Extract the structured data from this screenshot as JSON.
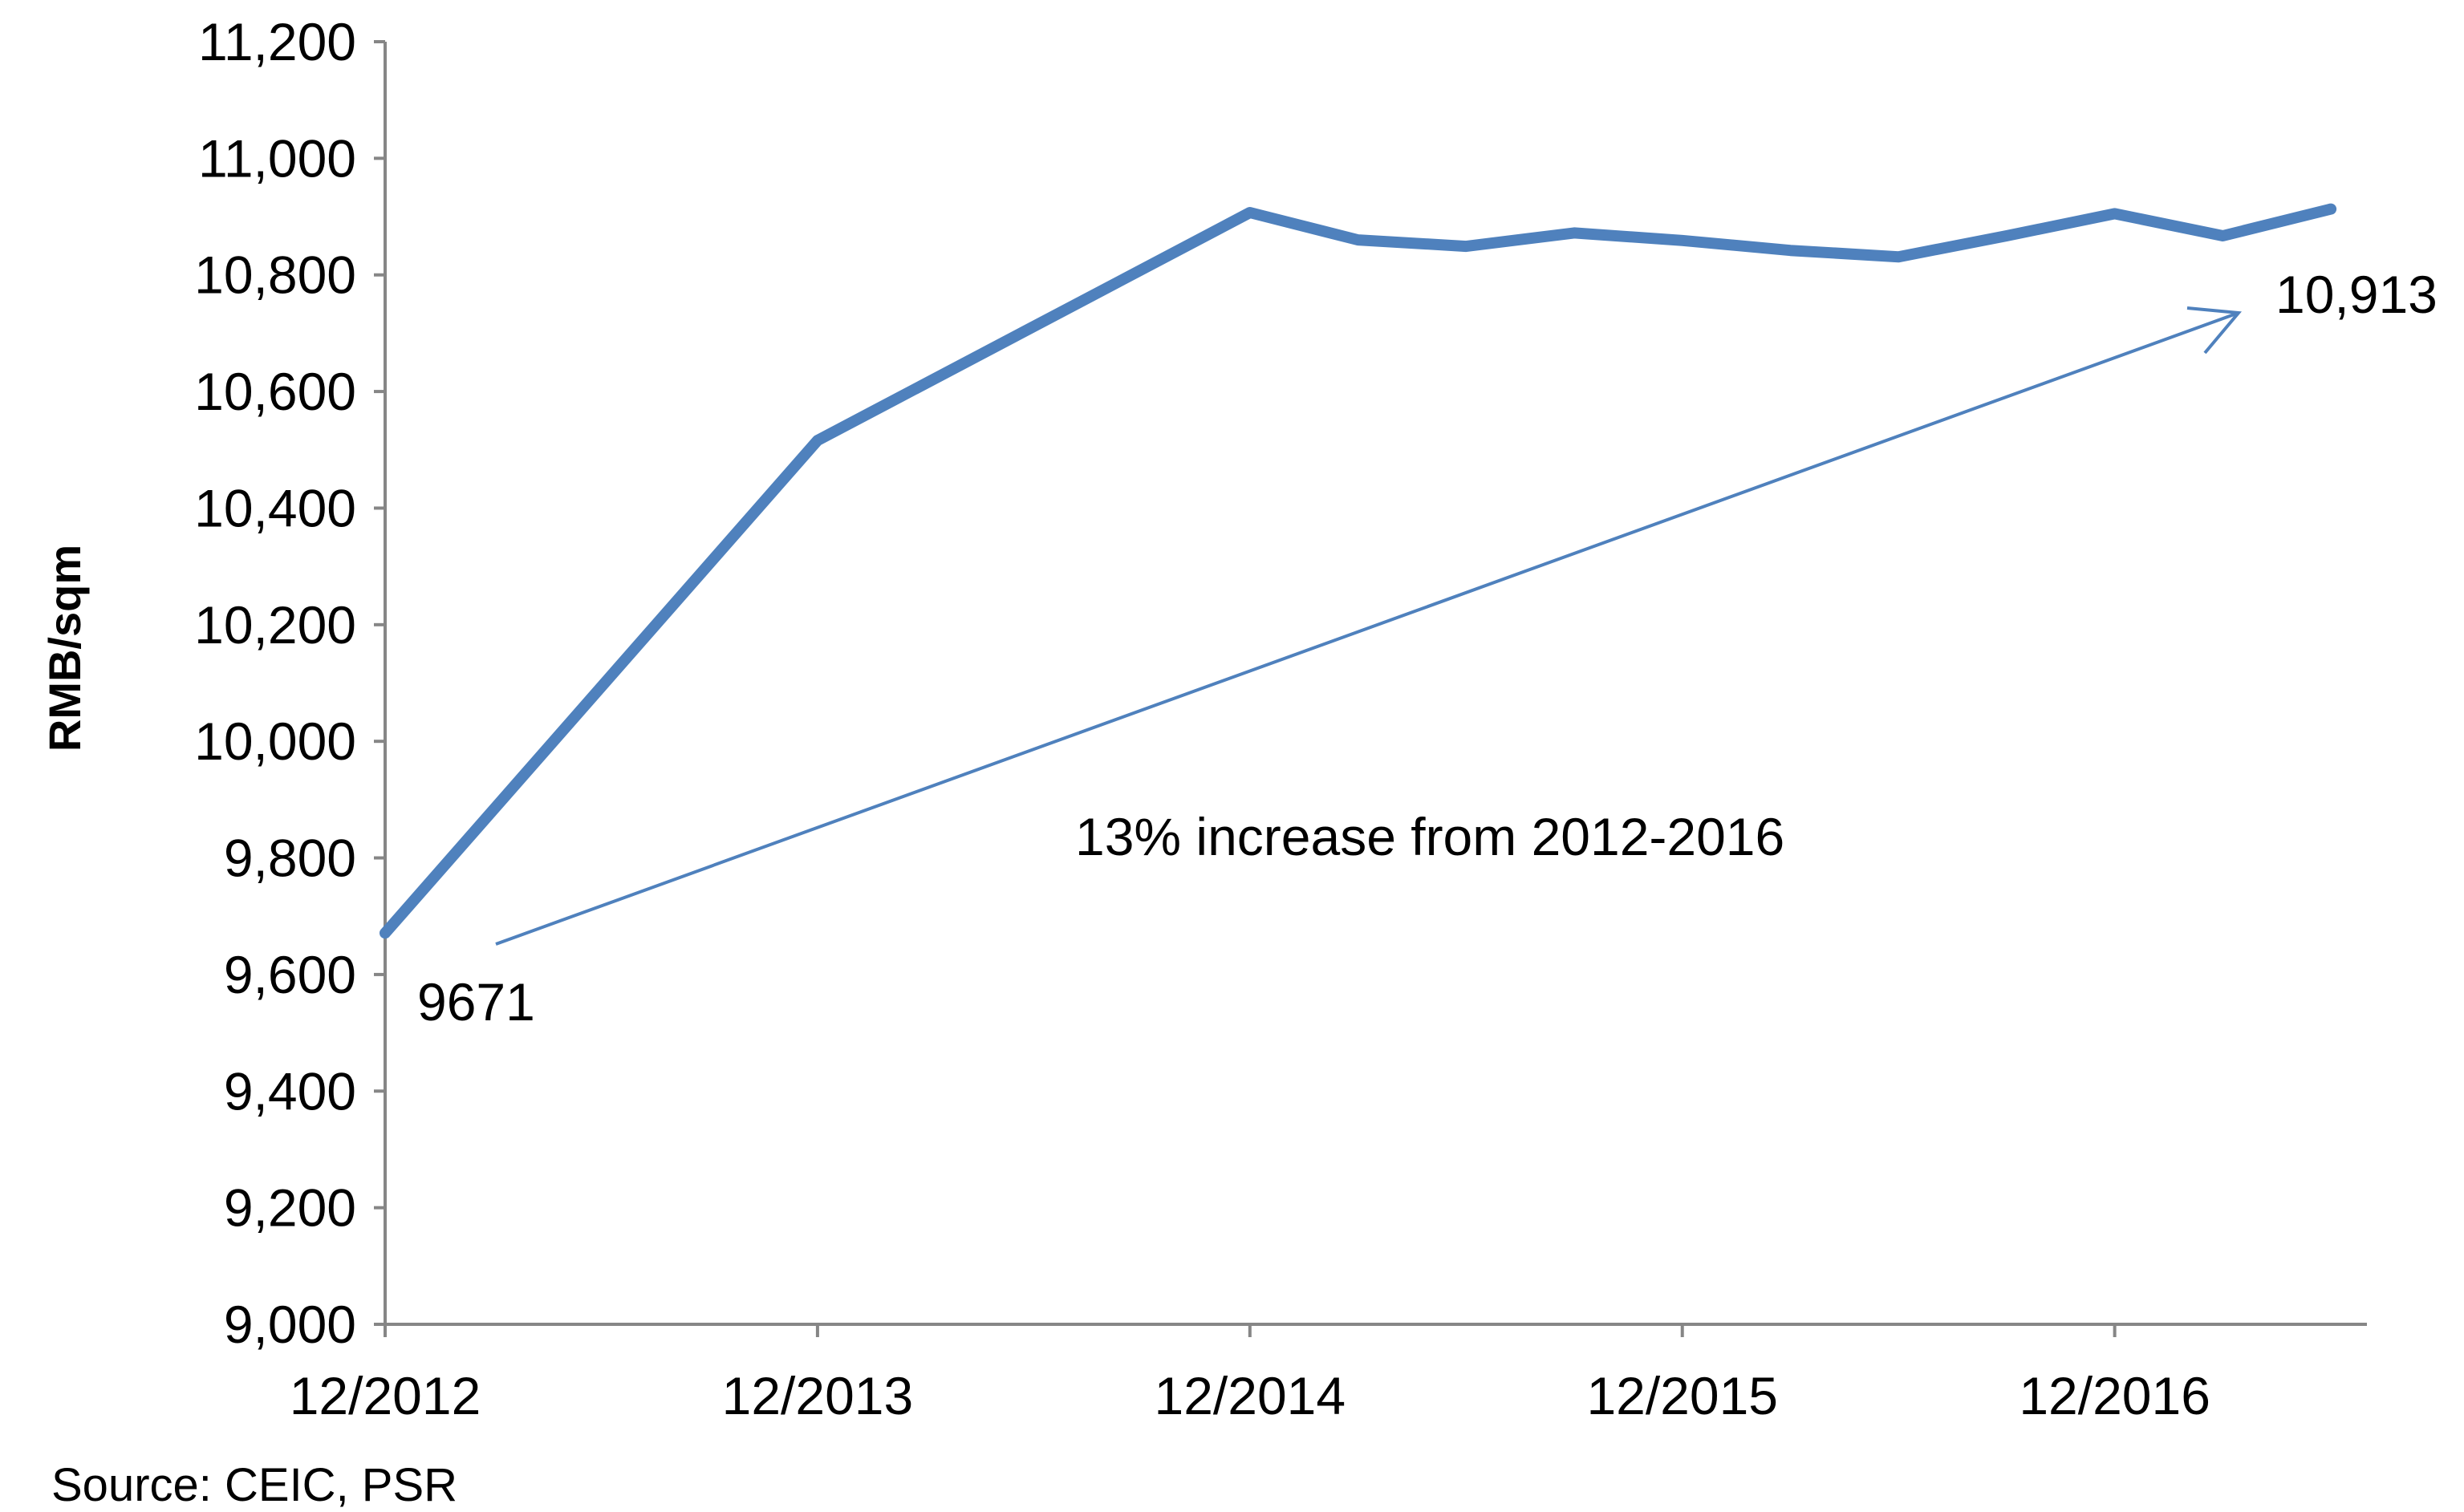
{
  "chart_data": {
    "type": "line",
    "title": "",
    "xlabel": "",
    "ylabel": "RMB/sqm",
    "ylim": [
      9000,
      11200
    ],
    "ytick_step": 200,
    "ytick_labels": [
      "9,000",
      "9,200",
      "9,400",
      "9,600",
      "9,800",
      "10,000",
      "10,200",
      "10,400",
      "10,600",
      "10,800",
      "11,000",
      "11,200"
    ],
    "xlim": [
      "2012-12",
      "2017-07"
    ],
    "xtick_labels": [
      "12/2012",
      "12/2013",
      "12/2014",
      "12/2015",
      "12/2016"
    ],
    "xtick_dates": [
      "2012-12",
      "2013-12",
      "2014-12",
      "2015-12",
      "2016-12"
    ],
    "grid": false,
    "legend": false,
    "series": [
      {
        "color": "#4F81BD",
        "x": [
          "2012-12",
          "2013-12",
          "2014-12",
          "2015-03",
          "2015-06",
          "2015-09",
          "2015-12",
          "2016-03",
          "2016-06",
          "2016-09",
          "2016-12",
          "2017-03",
          "2017-06"
        ],
        "values": [
          9671,
          10516,
          10907,
          10860,
          10849,
          10872,
          10859,
          10842,
          10831,
          10867,
          10905,
          10867,
          10913
        ]
      }
    ],
    "annotations": {
      "start_label": "9671",
      "end_label": "10,913",
      "trend_text": "13% increase from 2012-2016",
      "arrow_color": "#4F81BD"
    }
  },
  "source": "Source: CEIC, PSR"
}
